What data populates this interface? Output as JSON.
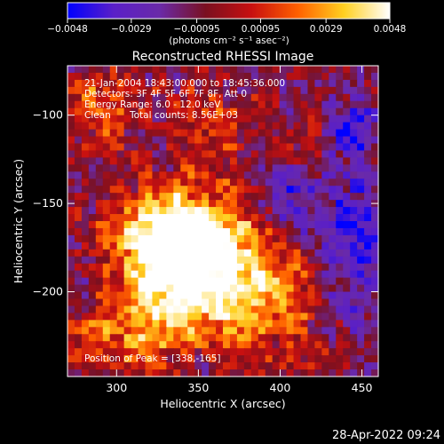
{
  "chart_data": {
    "type": "heatmap",
    "title": "Reconstructed RHESSI Image",
    "xlabel": "Heliocentric X (arcsec)",
    "ylabel": "Heliocentric Y (arcsec)",
    "xlim": [
      270,
      460
    ],
    "ylim": [
      -248,
      -72
    ],
    "x_ticks": [
      300,
      350,
      400,
      450
    ],
    "y_ticks": [
      -100,
      -150,
      -200
    ],
    "x_tick_labels": [
      "300",
      "350",
      "400",
      "450"
    ],
    "y_tick_labels": [
      "−100",
      "−150",
      "−200"
    ],
    "colorbar": {
      "min": -0.0048,
      "max": 0.0048,
      "ticks": [
        -0.0048,
        -0.0029,
        -0.00095,
        0.00095,
        0.0029,
        0.0048
      ],
      "tick_labels": [
        "−0.0048",
        "−0.0029",
        "−0.00095",
        "0.00095",
        "0.0029",
        "0.0048"
      ],
      "units_label": "(photons cm⁻² s⁻¹ asec⁻²)",
      "colors": [
        "#0000ff",
        "#5a1fc8",
        "#6a2aa8",
        "#7a1020",
        "#c81010",
        "#ff6000",
        "#ffd020",
        "#ffffff"
      ]
    },
    "annotations": {
      "time": "21-Jan-2004 18:43:00.000 to 18:45:36.000",
      "detectors": "Detectors: 3F 4F 5F 6F 7F 8F, Att 0",
      "energy": "Energy Range: 6.0 - 12.0 keV",
      "clean": "Clean",
      "counts": "Total counts: 8.56E+03",
      "peak": "Position of Peak = [338,-165]"
    },
    "peak_position": [
      338,
      -165
    ],
    "flux_sources": [
      {
        "x": 338,
        "y": -165,
        "sx": 22,
        "sy": 18,
        "amp": 1.0
      },
      {
        "x": 325,
        "y": -185,
        "sx": 30,
        "sy": 22,
        "amp": 0.75
      },
      {
        "x": 355,
        "y": -205,
        "sx": 28,
        "sy": 20,
        "amp": 0.6
      },
      {
        "x": 380,
        "y": -175,
        "sx": 20,
        "sy": 25,
        "amp": 0.45
      },
      {
        "x": 300,
        "y": -225,
        "sx": 25,
        "sy": 15,
        "amp": 0.5
      },
      {
        "x": 290,
        "y": -90,
        "sx": 18,
        "sy": 18,
        "amp": 0.55
      },
      {
        "x": 355,
        "y": -105,
        "sx": 22,
        "sy": 14,
        "amp": 0.45
      },
      {
        "x": 400,
        "y": -210,
        "sx": 22,
        "sy": 25,
        "amp": 0.4
      },
      {
        "x": 420,
        "y": -120,
        "sx": 15,
        "sy": 15,
        "amp": 0.2
      },
      {
        "x": 405,
        "y": -150,
        "sx": 14,
        "sy": 14,
        "amp": -0.45
      },
      {
        "x": 445,
        "y": -170,
        "sx": 18,
        "sy": 30,
        "amp": -0.5
      },
      {
        "x": 442,
        "y": -108,
        "sx": 10,
        "sy": 10,
        "amp": -0.6
      },
      {
        "x": 285,
        "y": -195,
        "sx": 16,
        "sy": 16,
        "amp": -0.3
      }
    ]
  },
  "footer": {
    "timestamp": "28-Apr-2022 09:24"
  }
}
